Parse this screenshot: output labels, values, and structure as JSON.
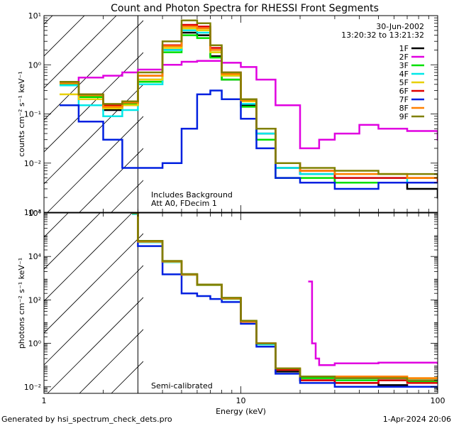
{
  "footer": {
    "generated": "Generated by hsi_spectrum_check_dets.pro",
    "date": "1-Apr-2024 20:06"
  },
  "chart_data": [
    {
      "type": "line",
      "title": "Count and Photon Spectra for RHESSI Front Segments",
      "xlabel": "",
      "ylabel": "counts cm⁻² s⁻¹ keV⁻¹",
      "x_scale": "log",
      "y_scale": "log",
      "xlim": [
        1,
        100
      ],
      "ylim": [
        0.001,
        10
      ],
      "x_ticks": [],
      "y_ticks": [
        {
          "value": 0.001,
          "label": "10⁻³"
        },
        {
          "value": 0.01,
          "label": "10⁻²"
        },
        {
          "value": 0.1,
          "label": "10⁻¹"
        },
        {
          "value": 1,
          "label": "10⁰"
        },
        {
          "value": 10,
          "label": "10¹"
        }
      ],
      "hatched_region": [
        1,
        3
      ],
      "annotations": {
        "date": "30-Jun-2002",
        "time_range": "13:20:32 to 13:21:32",
        "note1": "Includes Background",
        "note2": "Att A0, FDecim 1"
      },
      "legend_position": "top-right",
      "series": [
        {
          "name": "1F",
          "color": "#000000",
          "x": [
            1.2,
            1.5,
            2.0,
            2.5,
            3.0,
            4.0,
            5.0,
            6.0,
            7.0,
            8.0,
            10.0,
            12.0,
            15.0,
            20.0,
            30.0,
            50.0,
            70.0,
            100.0
          ],
          "y": [
            0.4,
            0.2,
            0.12,
            0.15,
            0.5,
            2.0,
            4.5,
            4.0,
            1.5,
            0.5,
            0.15,
            0.04,
            0.008,
            0.006,
            0.004,
            0.004,
            0.003,
            0.002
          ]
        },
        {
          "name": "2F",
          "color": "#e000e0",
          "x": [
            1.2,
            1.5,
            2.0,
            2.5,
            3.0,
            4.0,
            5.0,
            6.0,
            7.0,
            8.0,
            10.0,
            12.0,
            15.0,
            20.0,
            25.0,
            30.0,
            40.0,
            50.0,
            70.0,
            100.0
          ],
          "y": [
            0.45,
            0.55,
            0.6,
            0.7,
            0.8,
            1.0,
            1.15,
            1.2,
            1.2,
            1.1,
            0.9,
            0.5,
            0.15,
            0.02,
            0.03,
            0.04,
            0.06,
            0.05,
            0.045,
            0.03
          ]
        },
        {
          "name": "3F",
          "color": "#00e000",
          "x": [
            1.2,
            1.5,
            2.0,
            2.5,
            3.0,
            4.0,
            5.0,
            6.0,
            7.0,
            8.0,
            10.0,
            12.0,
            15.0,
            20.0,
            30.0,
            50.0,
            70.0,
            100.0
          ],
          "y": [
            0.4,
            0.22,
            0.14,
            0.16,
            0.45,
            1.8,
            4.0,
            3.5,
            1.4,
            0.5,
            0.14,
            0.03,
            0.005,
            0.005,
            0.004,
            0.004,
            0.004,
            0.004
          ]
        },
        {
          "name": "4F",
          "color": "#00e8e8",
          "x": [
            1.2,
            1.5,
            2.0,
            2.5,
            3.0,
            4.0,
            5.0,
            6.0,
            7.0,
            8.0,
            10.0,
            12.0,
            15.0,
            20.0,
            30.0,
            50.0,
            70.0,
            100.0
          ],
          "y": [
            0.38,
            0.15,
            0.09,
            0.12,
            0.4,
            2.0,
            5.0,
            4.5,
            1.8,
            0.6,
            0.16,
            0.04,
            0.008,
            0.006,
            0.005,
            0.005,
            0.004,
            0.004
          ]
        },
        {
          "name": "5F",
          "color": "#e8d000",
          "x": [
            1.2,
            1.5,
            2.0,
            2.5,
            3.0,
            4.0,
            5.0,
            6.0,
            7.0,
            8.0,
            10.0,
            12.0,
            15.0,
            20.0,
            30.0,
            50.0,
            70.0,
            100.0
          ],
          "y": [
            0.25,
            0.2,
            0.13,
            0.15,
            0.5,
            2.2,
            5.5,
            5.0,
            1.8,
            0.6,
            0.18,
            0.05,
            0.01,
            0.007,
            0.006,
            0.006,
            0.005,
            0.005
          ]
        },
        {
          "name": "6F",
          "color": "#e00000",
          "x": [
            1.2,
            1.5,
            2.0,
            2.5,
            3.0,
            4.0,
            5.0,
            6.0,
            7.0,
            8.0,
            10.0,
            12.0,
            15.0,
            20.0,
            30.0,
            50.0,
            70.0,
            100.0
          ],
          "y": [
            0.45,
            0.25,
            0.15,
            0.17,
            0.6,
            2.5,
            6.5,
            6.0,
            2.2,
            0.7,
            0.2,
            0.05,
            0.01,
            0.007,
            0.005,
            0.005,
            0.005,
            0.004
          ]
        },
        {
          "name": "7F",
          "color": "#0020e0",
          "x": [
            1.2,
            1.5,
            2.0,
            2.5,
            3.0,
            4.0,
            5.0,
            6.0,
            7.0,
            8.0,
            10.0,
            12.0,
            15.0,
            20.0,
            30.0,
            50.0,
            70.0,
            100.0
          ],
          "y": [
            0.15,
            0.07,
            0.03,
            0.008,
            0.008,
            0.01,
            0.05,
            0.25,
            0.3,
            0.2,
            0.08,
            0.02,
            0.005,
            0.004,
            0.003,
            0.004,
            0.004,
            0.004
          ]
        },
        {
          "name": "8F",
          "color": "#ff8000",
          "x": [
            1.2,
            1.5,
            2.0,
            2.5,
            3.0,
            4.0,
            5.0,
            6.0,
            7.0,
            8.0,
            10.0,
            12.0,
            15.0,
            20.0,
            30.0,
            50.0,
            70.0,
            100.0
          ],
          "y": [
            0.42,
            0.24,
            0.14,
            0.17,
            0.6,
            2.4,
            6.0,
            5.5,
            2.0,
            0.65,
            0.19,
            0.05,
            0.01,
            0.007,
            0.006,
            0.006,
            0.005,
            0.005
          ]
        },
        {
          "name": "9F",
          "color": "#808000",
          "x": [
            1.2,
            1.5,
            2.0,
            2.5,
            3.0,
            4.0,
            5.0,
            6.0,
            7.0,
            8.0,
            10.0,
            12.0,
            15.0,
            20.0,
            30.0,
            50.0,
            70.0,
            100.0
          ],
          "y": [
            0.45,
            0.25,
            0.16,
            0.18,
            0.7,
            3.0,
            8.0,
            7.0,
            2.5,
            0.7,
            0.2,
            0.05,
            0.01,
            0.008,
            0.007,
            0.006,
            0.006,
            0.005
          ]
        }
      ]
    },
    {
      "type": "line",
      "title": "",
      "xlabel": "Energy (keV)",
      "ylabel": "photons cm⁻² s⁻¹ keV⁻¹",
      "x_scale": "log",
      "y_scale": "log",
      "xlim": [
        1,
        100
      ],
      "ylim": [
        0.005,
        1000000
      ],
      "x_ticks": [
        {
          "value": 1,
          "label": "1"
        },
        {
          "value": 10,
          "label": "10"
        },
        {
          "value": 100,
          "label": "100"
        }
      ],
      "y_ticks": [
        {
          "value": 0.01,
          "label": "10⁻²"
        },
        {
          "value": 1,
          "label": "10⁰"
        },
        {
          "value": 100,
          "label": "10²"
        },
        {
          "value": 10000,
          "label": "10⁴"
        },
        {
          "value": 1000000,
          "label": "10⁶"
        }
      ],
      "hatched_region": [
        1,
        3
      ],
      "annotations": {
        "note1": "Semi-calibrated"
      },
      "series": [
        {
          "name": "1F",
          "color": "#000000",
          "x": [
            2.8,
            3.0,
            4.0,
            5.0,
            6.0,
            8.0,
            10.0,
            12.0,
            15.0,
            20.0,
            30.0,
            50.0,
            70.0,
            100.0
          ],
          "y": [
            1000000,
            50000,
            6000,
            1500,
            500,
            120,
            10,
            1,
            0.05,
            0.02,
            0.015,
            0.012,
            0.01,
            0.008
          ]
        },
        {
          "name": "2F",
          "color": "#e000e0",
          "x": [
            22,
            23,
            24,
            25,
            30,
            40,
            50,
            70,
            100
          ],
          "y": [
            700,
            1,
            0.2,
            0.1,
            0.12,
            0.12,
            0.13,
            0.13,
            0.12
          ]
        },
        {
          "name": "3F",
          "color": "#00e000",
          "x": [
            2.8,
            3.0,
            4.0,
            5.0,
            6.0,
            8.0,
            10.0,
            12.0,
            15.0,
            20.0,
            30.0,
            50.0,
            70.0,
            100.0
          ],
          "y": [
            900000,
            45000,
            5500,
            1400,
            480,
            110,
            11,
            0.9,
            0.06,
            0.025,
            0.02,
            0.02,
            0.018,
            0.02
          ]
        },
        {
          "name": "4F",
          "color": "#00e8e8",
          "x": [
            2.8,
            3.0,
            4.0,
            5.0,
            6.0,
            8.0,
            10.0,
            12.0,
            15.0,
            20.0,
            30.0,
            50.0,
            70.0,
            100.0
          ],
          "y": [
            900000,
            45000,
            5500,
            1400,
            480,
            110,
            10,
            0.9,
            0.06,
            0.03,
            0.025,
            0.02,
            0.02,
            0.02
          ]
        },
        {
          "name": "5F",
          "color": "#e8d000",
          "x": [
            2.8,
            3.0,
            4.0,
            5.0,
            6.0,
            8.0,
            10.0,
            12.0,
            15.0,
            20.0,
            30.0,
            50.0,
            70.0,
            100.0
          ],
          "y": [
            1000000,
            48000,
            5800,
            1450,
            490,
            115,
            10,
            1,
            0.07,
            0.03,
            0.03,
            0.03,
            0.025,
            0.03
          ]
        },
        {
          "name": "6F",
          "color": "#e00000",
          "x": [
            2.8,
            3.0,
            4.0,
            5.0,
            6.0,
            8.0,
            10.0,
            12.0,
            15.0,
            20.0,
            30.0,
            50.0,
            70.0,
            100.0
          ],
          "y": [
            1000000,
            50000,
            6000,
            1500,
            500,
            120,
            10,
            1,
            0.06,
            0.02,
            0.015,
            0.02,
            0.015,
            0.015
          ]
        },
        {
          "name": "7F",
          "color": "#0020e0",
          "x": [
            2.8,
            3.0,
            4.0,
            5.0,
            6.0,
            7.0,
            8.0,
            10.0,
            12.0,
            15.0,
            20.0,
            30.0,
            50.0,
            70.0,
            100.0
          ],
          "y": [
            1000000,
            30000,
            1500,
            200,
            150,
            110,
            80,
            8,
            0.7,
            0.04,
            0.015,
            0.01,
            0.01,
            0.01,
            0.01
          ]
        },
        {
          "name": "8F",
          "color": "#ff8000",
          "x": [
            2.8,
            3.0,
            4.0,
            5.0,
            6.0,
            8.0,
            10.0,
            12.0,
            15.0,
            20.0,
            30.0,
            50.0,
            70.0,
            100.0
          ],
          "y": [
            1000000,
            48000,
            5800,
            1450,
            490,
            115,
            10,
            1,
            0.07,
            0.03,
            0.03,
            0.03,
            0.025,
            0.025
          ]
        },
        {
          "name": "9F",
          "color": "#808000",
          "x": [
            2.8,
            3.0,
            4.0,
            5.0,
            6.0,
            8.0,
            10.0,
            12.0,
            15.0,
            20.0,
            30.0,
            50.0,
            70.0,
            100.0
          ],
          "y": [
            1000000,
            52000,
            6200,
            1550,
            510,
            125,
            11,
            1,
            0.07,
            0.03,
            0.025,
            0.025,
            0.02,
            0.02
          ]
        }
      ]
    }
  ]
}
